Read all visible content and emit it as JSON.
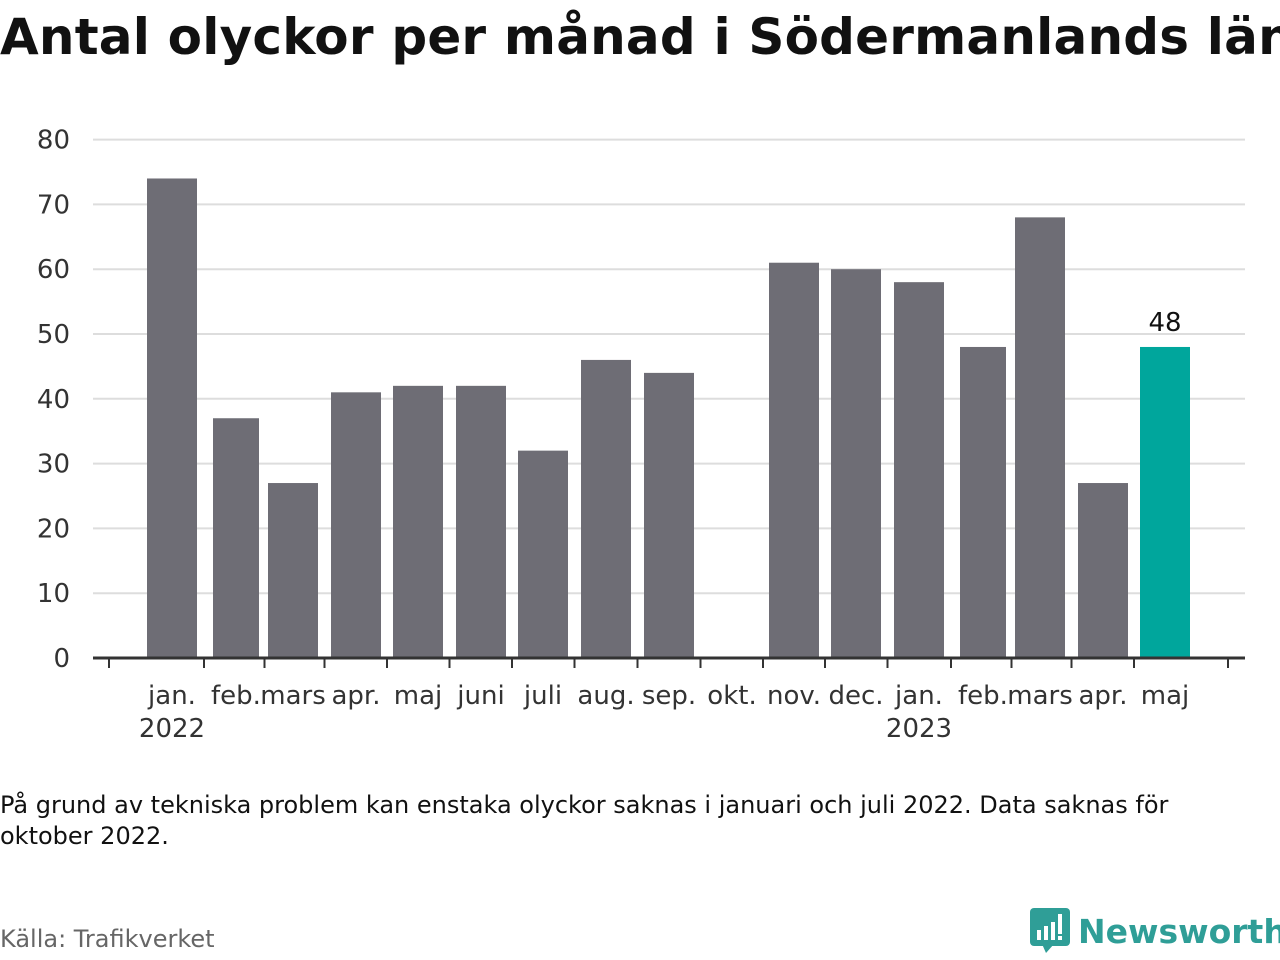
{
  "title": "Antal olyckor per månad i Södermanlands län",
  "note": "På grund av tekniska problem kan enstaka olyckor saknas i januari och juli 2022. Data saknas för oktober 2022.",
  "source": "Källa: Trafikverket",
  "brand": {
    "name": "Newsworthy",
    "icon": "newsworthy-logo-icon"
  },
  "colors": {
    "bar": "#6e6d75",
    "highlight": "#00a69c",
    "grid": "#dddddd",
    "axis": "#333333",
    "brand": "#2f9e97"
  },
  "chart_data": {
    "type": "bar",
    "categories": [
      "jan.",
      "feb.",
      "mars",
      "apr.",
      "maj",
      "juni",
      "juli",
      "aug.",
      "sep.",
      "okt.",
      "nov.",
      "dec.",
      "jan.",
      "feb.",
      "mars",
      "apr.",
      "maj"
    ],
    "year_labels": [
      {
        "index": 0,
        "label": "2022"
      },
      {
        "index": 12,
        "label": "2023"
      }
    ],
    "values": [
      74,
      37,
      27,
      41,
      42,
      42,
      32,
      46,
      44,
      null,
      61,
      60,
      58,
      48,
      68,
      27,
      48
    ],
    "highlight_index": 16,
    "data_labels": [
      {
        "index": 16,
        "label": "48"
      }
    ],
    "ylim": [
      0,
      80
    ],
    "yticks": [
      0,
      10,
      20,
      30,
      40,
      50,
      60,
      70,
      80
    ],
    "grid": true,
    "xlabel": "",
    "ylabel": ""
  }
}
